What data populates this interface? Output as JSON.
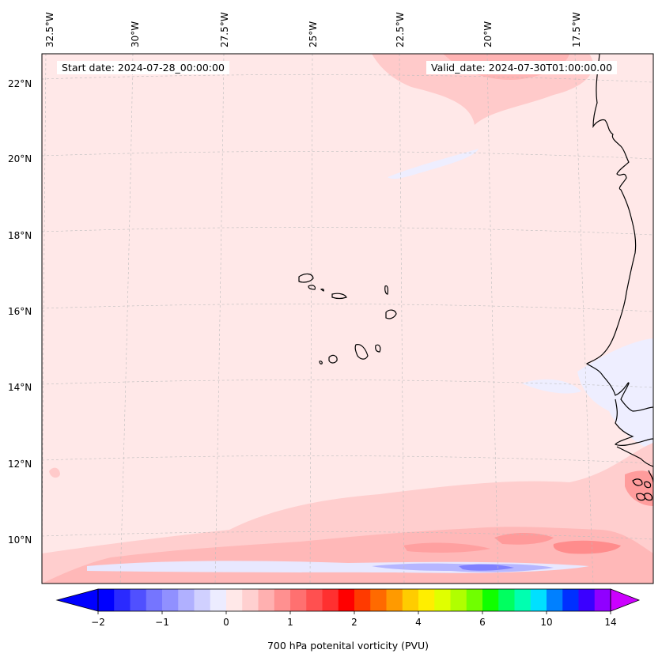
{
  "map": {
    "start_date": "Start date: 2024-07-28_00:00:00",
    "valid_date": "Valid_date: 2024-07-30T01:00:00.00",
    "lon_labels": [
      "32.5°W",
      "30°W",
      "27.5°W",
      "25°W",
      "22.5°W",
      "20°W",
      "17.5°W"
    ],
    "lat_labels": [
      "22°N",
      "20°N",
      "18°N",
      "16°N",
      "14°N",
      "12°N",
      "10°N"
    ],
    "background_color": "#ffe8e8"
  },
  "colorbar": {
    "title": "700 hPa potenital vorticity (PVU)",
    "tick_labels": [
      "−2",
      "−1",
      "0",
      "1",
      "2",
      "4",
      "6",
      "10",
      "14"
    ],
    "colors": [
      "#0000ff",
      "#2a2aff",
      "#5050ff",
      "#7575ff",
      "#9090ff",
      "#b0b0ff",
      "#d0d0ff",
      "#ececff",
      "#ffe8e8",
      "#ffd0d0",
      "#ffb0b0",
      "#ff9090",
      "#ff7070",
      "#ff5050",
      "#ff3030",
      "#ff0000",
      "#ff3a00",
      "#ff6a00",
      "#ff9a00",
      "#ffcc00",
      "#ffee00",
      "#e0ff00",
      "#b0ff00",
      "#70ff00",
      "#10ff00",
      "#00ff60",
      "#00ffb0",
      "#00e0ff",
      "#0080ff",
      "#0030ff",
      "#3a00ff",
      "#9000ff"
    ],
    "under_color": "#0000ff",
    "over_color": "#cc00ff"
  }
}
